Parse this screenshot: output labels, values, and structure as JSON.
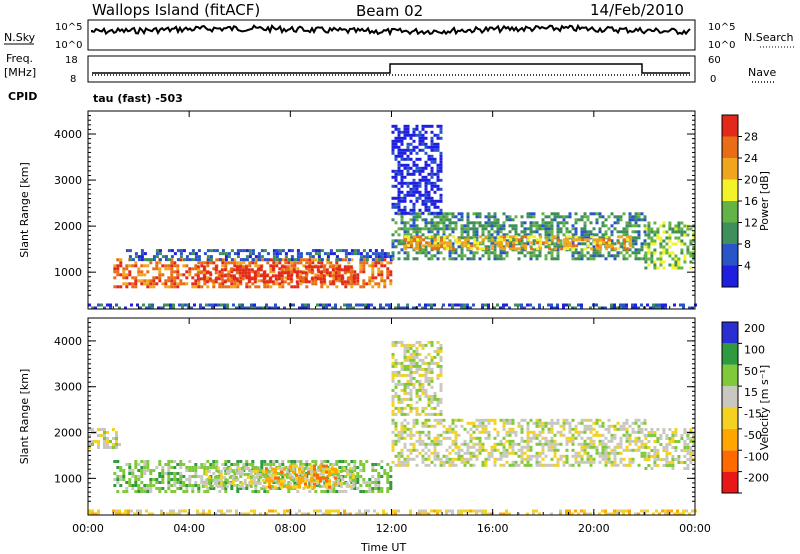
{
  "header": {
    "station": "Wallops Island (fitACF)",
    "beam": "Beam 02",
    "date": "14/Feb/2010"
  },
  "strip": {
    "nsky_label": "N.Sky",
    "nsky_ticks": [
      "10^5",
      "10^0"
    ],
    "nsearch_label": "N.Search",
    "nsearch_ticks": [
      "10^5",
      "10^0"
    ],
    "freq_label": "Freq.",
    "freq_unit": "[MHz]",
    "freq_ticks": [
      "18",
      "8"
    ],
    "nave_label": "Nave",
    "nave_ticks": [
      "60",
      "0"
    ],
    "cpid_label": "CPID",
    "cpid_value": "tau (fast) -503"
  },
  "x_axis": {
    "title": "Time UT",
    "ticks": [
      "00:00",
      "04:00",
      "08:00",
      "12:00",
      "16:00",
      "20:00",
      "00:00"
    ]
  },
  "colors": {
    "power": [
      "#1f1fe0",
      "#2a55c8",
      "#3f8f5a",
      "#63b347",
      "#f3f32a",
      "#f0a51c",
      "#e86d14",
      "#e32a1a"
    ],
    "velocity": [
      "#e81818",
      "#ff6a00",
      "#ffa700",
      "#f5d21f",
      "#c8c8c0",
      "#7fc93b",
      "#2f9b3e",
      "#2a2fd2"
    ]
  },
  "chart_data": [
    {
      "type": "heatmap",
      "panel": "power",
      "ylabel": "Slant Range [km]",
      "y_ticks": [
        1000,
        2000,
        3000,
        4000
      ],
      "ylim": [
        200,
        4500
      ],
      "xlim": [
        0,
        24
      ],
      "colorbar": {
        "title": "Power [dB]",
        "ticks": [
          4,
          8,
          12,
          16,
          20,
          24,
          28
        ]
      },
      "regions": [
        {
          "t0": 1.0,
          "t1": 12.0,
          "r0": 700,
          "r1": 1300,
          "level": 6
        },
        {
          "t0": 4.3,
          "t1": 10.5,
          "r0": 800,
          "r1": 1150,
          "level": 7
        },
        {
          "t0": 1.5,
          "t1": 12.0,
          "r0": 1300,
          "r1": 1500,
          "level": 1
        },
        {
          "t0": 12.0,
          "t1": 22.0,
          "r0": 1300,
          "r1": 2300,
          "level": 2
        },
        {
          "t0": 12.5,
          "t1": 21.5,
          "r0": 1500,
          "r1": 1800,
          "level": 5
        },
        {
          "t0": 22.0,
          "t1": 24.0,
          "r0": 1100,
          "r1": 2100,
          "level": 3
        },
        {
          "t0": 12.0,
          "t1": 14.0,
          "r0": 2300,
          "r1": 4200,
          "level": 0
        },
        {
          "t0": 0.0,
          "t1": 24.0,
          "r0": 200,
          "r1": 320,
          "level": 1
        }
      ]
    },
    {
      "type": "heatmap",
      "panel": "velocity",
      "ylabel": "Slant Range [km]",
      "y_ticks": [
        1000,
        2000,
        3000,
        4000
      ],
      "ylim": [
        200,
        4500
      ],
      "xlim": [
        0,
        24
      ],
      "colorbar": {
        "title": "Velocity [m s⁻¹]",
        "ticks": [
          200,
          100,
          50,
          15,
          -15,
          -50,
          -100,
          -200
        ]
      },
      "regions": [
        {
          "t0": 1.0,
          "t1": 12.0,
          "r0": 700,
          "r1": 1400,
          "level": 5
        },
        {
          "t0": 4.5,
          "t1": 10.5,
          "r0": 800,
          "r1": 1250,
          "level": 4
        },
        {
          "t0": 7.0,
          "t1": 9.8,
          "r0": 800,
          "r1": 1300,
          "level": 2
        },
        {
          "t0": 12.0,
          "t1": 22.0,
          "r0": 1300,
          "r1": 2300,
          "level": 4
        },
        {
          "t0": 22.0,
          "t1": 24.0,
          "r0": 1200,
          "r1": 2100,
          "level": 4
        },
        {
          "t0": 0.0,
          "t1": 1.2,
          "r0": 1700,
          "r1": 2100,
          "level": 4
        },
        {
          "t0": 12.0,
          "t1": 14.0,
          "r0": 2400,
          "r1": 4000,
          "level": 4
        },
        {
          "t0": 0.0,
          "t1": 24.0,
          "r0": 200,
          "r1": 320,
          "level": 3
        }
      ]
    }
  ]
}
